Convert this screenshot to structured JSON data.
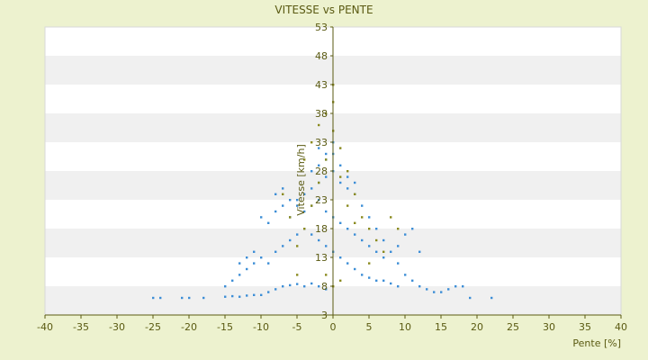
{
  "chart_data": {
    "type": "scatter",
    "title": "VITESSE vs PENTE",
    "xlabel": "Pente [%]",
    "ylabel": "Vitesse [km/h]",
    "xlim": [
      -40,
      40
    ],
    "ylim": [
      3,
      53
    ],
    "x_ticks": [
      "-40",
      "-35",
      "-30",
      "-25",
      "-20",
      "-15",
      "-10",
      "-5",
      "0",
      "5",
      "10",
      "15",
      "20",
      "25",
      "30",
      "35",
      "40"
    ],
    "y_ticks": [
      "3",
      "8",
      "13",
      "18",
      "23",
      "28",
      "33",
      "38",
      "43",
      "48",
      "53"
    ],
    "grid": "alternating horizontal bands",
    "legend": "none",
    "colors": {
      "background": "#edf2cf",
      "band_light": "#ffffff",
      "band_dark": "#f0f0f0",
      "axis": "#5a5a12",
      "series_blue": "#3d8ed6",
      "series_olive": "#8a8a1e"
    },
    "series": [
      {
        "color": "#3d8ed6",
        "values": [
          [
            -25,
            6
          ],
          [
            -24,
            6
          ],
          [
            -21,
            6
          ],
          [
            -20,
            6
          ],
          [
            -18,
            6
          ],
          [
            -15,
            6.2
          ],
          [
            -14,
            6.3
          ],
          [
            -13,
            6.2
          ],
          [
            -12,
            6.4
          ],
          [
            -11,
            6.5
          ],
          [
            -10,
            6.5
          ],
          [
            -9,
            7
          ],
          [
            -8,
            7.5
          ],
          [
            -7,
            8
          ],
          [
            -6,
            8.2
          ],
          [
            -5,
            8.4
          ],
          [
            -4,
            8
          ],
          [
            -3,
            8.5
          ],
          [
            -2,
            8
          ],
          [
            -1,
            7.5
          ],
          [
            -14,
            9
          ],
          [
            -13,
            10
          ],
          [
            -12,
            11
          ],
          [
            -11,
            12
          ],
          [
            -10,
            13
          ],
          [
            -9,
            12
          ],
          [
            -8,
            14
          ],
          [
            -7,
            15
          ],
          [
            -6,
            16
          ],
          [
            -5,
            17
          ],
          [
            -10,
            20
          ],
          [
            -9,
            19
          ],
          [
            -8,
            21
          ],
          [
            -7,
            22
          ],
          [
            -6,
            20
          ],
          [
            -5,
            23
          ],
          [
            -4,
            24
          ],
          [
            -3,
            25
          ],
          [
            -2,
            26
          ],
          [
            -1,
            27
          ],
          [
            0,
            28
          ],
          [
            1,
            26
          ],
          [
            2,
            25
          ],
          [
            3,
            24
          ],
          [
            4,
            22
          ],
          [
            5,
            20
          ],
          [
            6,
            18
          ],
          [
            7,
            16
          ],
          [
            8,
            14
          ],
          [
            9,
            12
          ],
          [
            10,
            10
          ],
          [
            11,
            9
          ],
          [
            12,
            8
          ],
          [
            13,
            7.5
          ],
          [
            14,
            7
          ],
          [
            15,
            7
          ],
          [
            16,
            7.5
          ],
          [
            17,
            8
          ],
          [
            18,
            8
          ],
          [
            19,
            6
          ],
          [
            22,
            6
          ],
          [
            -4,
            18
          ],
          [
            -3,
            17
          ],
          [
            -2,
            16
          ],
          [
            -1,
            15
          ],
          [
            0,
            14
          ],
          [
            1,
            13
          ],
          [
            2,
            12
          ],
          [
            3,
            11
          ],
          [
            4,
            10
          ],
          [
            5,
            9.5
          ],
          [
            6,
            9
          ],
          [
            7,
            9
          ],
          [
            8,
            8.5
          ],
          [
            9,
            8
          ],
          [
            -5,
            22
          ],
          [
            -4,
            21
          ],
          [
            -3,
            22
          ],
          [
            -2,
            23
          ],
          [
            -1,
            21
          ],
          [
            0,
            20
          ],
          [
            1,
            19
          ],
          [
            2,
            18
          ],
          [
            3,
            17
          ],
          [
            4,
            16
          ],
          [
            5,
            15
          ],
          [
            6,
            14
          ],
          [
            7,
            13
          ],
          [
            -3,
            28
          ],
          [
            -2,
            29
          ],
          [
            -1,
            30
          ],
          [
            0,
            31
          ],
          [
            1,
            29
          ],
          [
            2,
            27
          ],
          [
            3,
            26
          ],
          [
            -2,
            32
          ],
          [
            -1,
            31
          ],
          [
            0,
            33
          ],
          [
            -8,
            24
          ],
          [
            -7,
            25
          ],
          [
            -6,
            23
          ],
          [
            9,
            15
          ],
          [
            10,
            17
          ],
          [
            11,
            18
          ],
          [
            12,
            14
          ],
          [
            -12,
            13
          ],
          [
            -11,
            14
          ],
          [
            -13,
            12
          ],
          [
            -15,
            8
          ]
        ]
      },
      {
        "color": "#8a8a1e",
        "values": [
          [
            -5,
            15
          ],
          [
            -4,
            18
          ],
          [
            -3,
            22
          ],
          [
            -2,
            26
          ],
          [
            -1,
            30
          ],
          [
            0,
            35
          ],
          [
            0,
            40
          ],
          [
            0,
            43
          ],
          [
            -1,
            38
          ],
          [
            1,
            32
          ],
          [
            2,
            28
          ],
          [
            3,
            24
          ],
          [
            4,
            20
          ],
          [
            5,
            18
          ],
          [
            6,
            16
          ],
          [
            7,
            14
          ],
          [
            -6,
            20
          ],
          [
            -7,
            24
          ],
          [
            -4,
            30
          ],
          [
            -3,
            33
          ],
          [
            -2,
            36
          ],
          [
            1,
            27
          ],
          [
            2,
            22
          ],
          [
            3,
            19
          ],
          [
            -1,
            10
          ],
          [
            0,
            8
          ],
          [
            1,
            9
          ],
          [
            -5,
            10
          ],
          [
            5,
            12
          ],
          [
            8,
            20
          ],
          [
            9,
            18
          ]
        ]
      }
    ]
  }
}
